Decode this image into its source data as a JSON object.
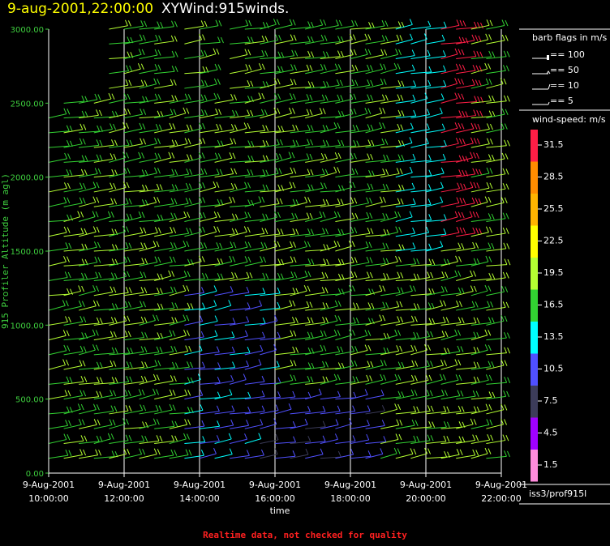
{
  "title": {
    "date": "9-aug-2001,22:00:00",
    "name": "XYWind:915winds."
  },
  "footer": "Realtime data, not checked for quality",
  "source_label": "iss3/prof915l",
  "legend": {
    "barb_title": "barb flags in m/s",
    "barb_items": [
      "== 100",
      "== 50",
      "== 10",
      "== 5"
    ],
    "speed_title": "wind-speed: m/s",
    "speed_colors": [
      {
        "value": "31.5",
        "color": "#ff1e46"
      },
      {
        "value": "28.5",
        "color": "#ff8c00"
      },
      {
        "value": "25.5",
        "color": "#ffb400"
      },
      {
        "value": "22.5",
        "color": "#ffff00"
      },
      {
        "value": "19.5",
        "color": "#b4ff32"
      },
      {
        "value": "16.5",
        "color": "#32d232"
      },
      {
        "value": "13.5",
        "color": "#00ffff"
      },
      {
        "value": "10.5",
        "color": "#5050ff"
      },
      {
        "value": "7.5",
        "color": "#3c3c5a"
      },
      {
        "value": "4.5",
        "color": "#a000ff"
      },
      {
        "value": "1.5",
        "color": "#ff8cdc"
      }
    ]
  },
  "chart_data": {
    "type": "scatter",
    "title": "XYWind:915winds.",
    "xlabel": "time",
    "ylabel": "915 Profiler Altitude (m agl)",
    "xlim_hours": [
      10,
      22
    ],
    "ylim": [
      0,
      3000
    ],
    "grid": true,
    "xticks": [
      {
        "h": 10,
        "date": "9-Aug-2001",
        "time": "10:00:00"
      },
      {
        "h": 12,
        "date": "9-Aug-2001",
        "time": "12:00:00"
      },
      {
        "h": 14,
        "date": "9-Aug-2001",
        "time": "14:00:00"
      },
      {
        "h": 16,
        "date": "9-Aug-2001",
        "time": "16:00:00"
      },
      {
        "h": 18,
        "date": "9-Aug-2001",
        "time": "18:00:00"
      },
      {
        "h": 20,
        "date": "9-Aug-2001",
        "time": "20:00:00"
      },
      {
        "h": 22,
        "date": "9-Aug-2001",
        "time": "22:00:00"
      }
    ],
    "yticks": [
      "0.00",
      "500.00",
      "1000.00",
      "1500.00",
      "2000.00",
      "2500.00",
      "3000.00"
    ],
    "ytick_values": [
      0,
      500,
      1000,
      1500,
      2000,
      2500,
      3000
    ],
    "time_columns_hours": [
      10.0,
      10.4,
      10.8,
      11.2,
      11.6,
      12.0,
      12.4,
      12.8,
      13.2,
      13.6,
      14.0,
      14.4,
      14.8,
      15.2,
      15.6,
      16.0,
      16.4,
      16.8,
      17.2,
      17.6,
      18.0,
      18.4,
      18.8,
      19.2,
      19.6,
      20.0,
      20.4,
      20.8,
      21.2,
      21.6
    ],
    "levels_m": [
      100,
      200,
      300,
      400,
      500,
      600,
      700,
      800,
      900,
      1000,
      1100,
      1200,
      1300,
      1400,
      1500,
      1600,
      1700,
      1800,
      1900,
      2000,
      2100,
      2200,
      2300,
      2400,
      2500,
      2600,
      2700,
      2800,
      2900,
      3000
    ],
    "note_direction_deg": 245,
    "speed_range_ms": [
      1.5,
      31.5
    ]
  }
}
